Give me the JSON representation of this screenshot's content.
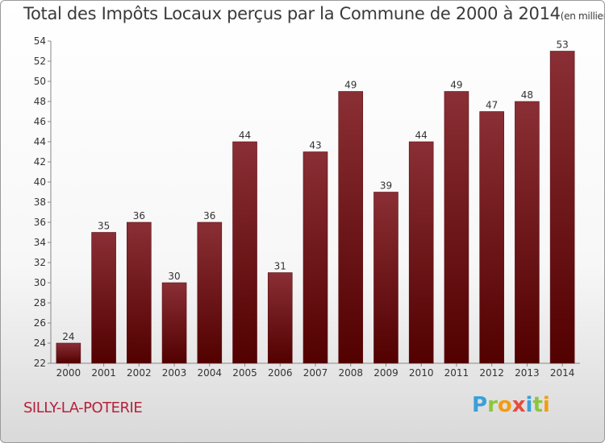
{
  "title": "Total des Impôts Locaux perçus par la Commune de 2000 à 2014",
  "unit": "(en milliers d'€)",
  "commune": "SILLY-LA-POTERIE",
  "logo": {
    "letters": [
      "P",
      "r",
      "o",
      "x",
      "i",
      "t",
      "i"
    ],
    "colors": [
      "#3aa0d8",
      "#8cc63f",
      "#f39c12",
      "#e74c3c",
      "#3aa0d8",
      "#8cc63f",
      "#f39c12"
    ]
  },
  "colors": {
    "bar_top": "#8a2f35",
    "bar_bottom": "#520000",
    "text": "#333333"
  },
  "chart_data": {
    "type": "bar",
    "title": "Total des Impôts Locaux perçus par la Commune de 2000 à 2014",
    "xlabel": "",
    "ylabel": "",
    "categories": [
      "2000",
      "2001",
      "2002",
      "2003",
      "2004",
      "2005",
      "2006",
      "2007",
      "2008",
      "2009",
      "2010",
      "2011",
      "2012",
      "2013",
      "2014"
    ],
    "values": [
      24,
      35,
      36,
      30,
      36,
      44,
      31,
      43,
      49,
      39,
      44,
      49,
      47,
      48,
      53
    ],
    "ylim": [
      22,
      54
    ],
    "yticks": [
      22,
      24,
      26,
      28,
      30,
      32,
      34,
      36,
      38,
      40,
      42,
      44,
      46,
      48,
      50,
      52,
      54
    ],
    "grid": false
  }
}
